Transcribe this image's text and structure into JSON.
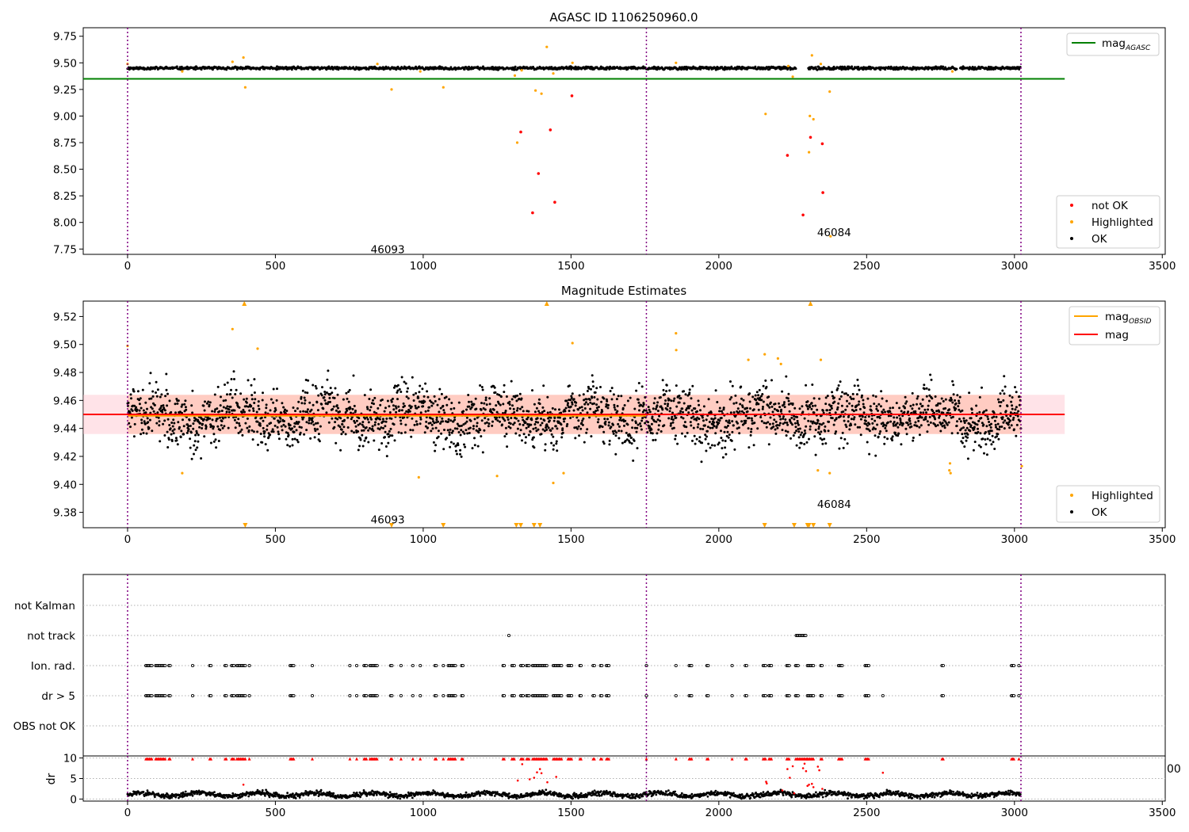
{
  "figure": {
    "title_top": "AGASC ID 1106250960.0",
    "title_mid": "Magnitude Estimates"
  },
  "colors": {
    "ok": "#000000",
    "highlighted": "#ffa500",
    "not_ok": "#ff0000",
    "agasc_line": "#008000",
    "obsid_line": "#ffa500",
    "mag_line": "#ff0000",
    "obs_boundary": "#800080",
    "band_fill": "#ffc0cb"
  },
  "chart_data": [
    {
      "id": "agasc",
      "type": "scatter",
      "title": "AGASC ID 1106250960.0",
      "xlim": [
        -150,
        3510
      ],
      "ylim": [
        7.7,
        9.83
      ],
      "xticks": [
        0,
        500,
        1000,
        1500,
        2000,
        2500,
        3000,
        3500
      ],
      "yticks": [
        7.75,
        8.0,
        8.25,
        8.5,
        8.75,
        9.0,
        9.25,
        9.5,
        9.75
      ],
      "ytick_labels": [
        "7.75",
        "8.00",
        "8.25",
        "8.50",
        "8.75",
        "9.00",
        "9.25",
        "9.50",
        "9.75"
      ],
      "obs_boundaries": [
        0,
        1755,
        3022
      ],
      "obs_labels": [
        {
          "text": "46093",
          "x": 880,
          "y": 7.75
        },
        {
          "text": "46084",
          "x": 2390,
          "y": 7.91
        }
      ],
      "mag_agasc": 9.35,
      "line_range": [
        -150,
        3170
      ],
      "ok_band": {
        "center": 9.45,
        "amp": 0.012
      },
      "gaps": [
        [
          2262,
          2302
        ],
        [
          2805,
          2815
        ]
      ],
      "highlighted": [
        [
          0,
          9.49
        ],
        [
          185,
          9.42
        ],
        [
          355,
          9.51
        ],
        [
          392,
          9.55
        ],
        [
          398,
          9.27
        ],
        [
          845,
          9.49
        ],
        [
          893,
          9.25
        ],
        [
          990,
          9.42
        ],
        [
          1068,
          9.27
        ],
        [
          1310,
          9.38
        ],
        [
          1318,
          8.75
        ],
        [
          1333,
          9.43
        ],
        [
          1380,
          9.24
        ],
        [
          1400,
          9.21
        ],
        [
          1418,
          9.65
        ],
        [
          1440,
          9.4
        ],
        [
          1505,
          9.5
        ],
        [
          1855,
          9.5
        ],
        [
          2158,
          9.02
        ],
        [
          2235,
          9.47
        ],
        [
          2250,
          9.37
        ],
        [
          2305,
          8.66
        ],
        [
          2308,
          9.0
        ],
        [
          2315,
          9.57
        ],
        [
          2320,
          8.97
        ],
        [
          2345,
          9.49
        ],
        [
          2375,
          9.23
        ],
        [
          2378,
          7.87
        ],
        [
          2790,
          9.42
        ]
      ],
      "not_ok": [
        [
          1330,
          8.85
        ],
        [
          1370,
          8.09
        ],
        [
          1390,
          8.46
        ],
        [
          1430,
          8.87
        ],
        [
          1445,
          8.19
        ],
        [
          1503,
          9.19
        ],
        [
          2232,
          8.63
        ],
        [
          2285,
          8.07
        ],
        [
          2310,
          8.8
        ],
        [
          2350,
          8.74
        ],
        [
          2352,
          8.28
        ]
      ],
      "legend_lines": [
        {
          "label": "mag",
          "sub": "AGASC"
        }
      ],
      "legend_points": [
        "not OK",
        "Highlighted",
        "OK"
      ]
    },
    {
      "id": "estimates",
      "type": "scatter",
      "title": "Magnitude Estimates",
      "xlim": [
        -150,
        3510
      ],
      "ylim": [
        9.369,
        9.531
      ],
      "xticks": [
        0,
        500,
        1000,
        1500,
        2000,
        2500,
        3000,
        3500
      ],
      "yticks": [
        9.38,
        9.4,
        9.42,
        9.44,
        9.46,
        9.48,
        9.5,
        9.52
      ],
      "ytick_labels": [
        "9.38",
        "9.40",
        "9.42",
        "9.44",
        "9.46",
        "9.48",
        "9.50",
        "9.52"
      ],
      "obs_boundaries": [
        0,
        1755,
        3022
      ],
      "obs_labels": [
        {
          "text": "46093",
          "x": 880,
          "y": 9.375
        },
        {
          "text": "46084",
          "x": 2390,
          "y": 9.386
        }
      ],
      "mag": 9.45,
      "mag_obsid_1": 9.449,
      "mag_obsid_2": 9.45,
      "band": [
        9.436,
        9.464
      ],
      "line_range": [
        -150,
        3170
      ],
      "ok_band": {
        "center": 9.448,
        "sd": 0.012
      },
      "highlighted": [
        [
          0,
          9.499
        ],
        [
          185,
          9.408
        ],
        [
          355,
          9.511
        ],
        [
          440,
          9.497
        ],
        [
          985,
          9.405
        ],
        [
          1250,
          9.406
        ],
        [
          1440,
          9.401
        ],
        [
          1475,
          9.408
        ],
        [
          1505,
          9.501
        ],
        [
          1855,
          9.508
        ],
        [
          1856,
          9.496
        ],
        [
          2100,
          9.489
        ],
        [
          2155,
          9.493
        ],
        [
          2200,
          9.49
        ],
        [
          2210,
          9.486
        ],
        [
          2335,
          9.41
        ],
        [
          2345,
          9.489
        ],
        [
          2375,
          9.408
        ],
        [
          2780,
          9.41
        ],
        [
          2782,
          9.415
        ],
        [
          2784,
          9.408
        ],
        [
          3025,
          9.413
        ]
      ],
      "clipped_high": [
        395,
        1418,
        2310
      ],
      "clipped_low": [
        398,
        893,
        1068,
        1315,
        1330,
        1375,
        1395,
        2155,
        2255,
        2300,
        2305,
        2320,
        2375
      ],
      "legend_lines": [
        {
          "label": "mag",
          "sub": "OBSID"
        },
        {
          "label": "mag",
          "sub": ""
        }
      ],
      "legend_points": [
        "Highlighted",
        "OK"
      ]
    },
    {
      "id": "flags",
      "type": "scatter",
      "xlim": [
        -150,
        3510
      ],
      "categories": [
        "not Kalman",
        "not track",
        "Ion. rad.",
        "dr > 5",
        "OBS not OK"
      ],
      "obs_boundaries": [
        0,
        1755,
        3022
      ],
      "flag_clusters": {
        "not track": [
          [
            1290,
            1290
          ],
          [
            2262,
            2295
          ]
        ],
        "Ion. rad.": [
          [
            62,
            82
          ],
          [
            95,
            130
          ],
          [
            140,
            145
          ],
          [
            220,
            222
          ],
          [
            278,
            285
          ],
          [
            330,
            335
          ],
          [
            352,
            360
          ],
          [
            370,
            400
          ],
          [
            412,
            415
          ],
          [
            550,
            565
          ],
          [
            625,
            628
          ],
          [
            752,
            755
          ],
          [
            775,
            778
          ],
          [
            800,
            810
          ],
          [
            820,
            845
          ],
          [
            890,
            895
          ],
          [
            925,
            928
          ],
          [
            965,
            968
          ],
          [
            990,
            993
          ],
          [
            1040,
            1045
          ],
          [
            1068,
            1070
          ],
          [
            1085,
            1110
          ],
          [
            1130,
            1135
          ],
          [
            1270,
            1275
          ],
          [
            1300,
            1310
          ],
          [
            1330,
            1340
          ],
          [
            1350,
            1360
          ],
          [
            1370,
            1420
          ],
          [
            1440,
            1470
          ],
          [
            1490,
            1505
          ],
          [
            1530,
            1535
          ],
          [
            1575,
            1580
          ],
          [
            1600,
            1605
          ],
          [
            1620,
            1630
          ],
          [
            1755,
            1757
          ],
          [
            1855,
            1857
          ],
          [
            1900,
            1910
          ],
          [
            1960,
            1965
          ],
          [
            2045,
            2048
          ],
          [
            2090,
            2095
          ],
          [
            2150,
            2160
          ],
          [
            2170,
            2180
          ],
          [
            2230,
            2240
          ],
          [
            2260,
            2270
          ],
          [
            2300,
            2320
          ],
          [
            2345,
            2350
          ],
          [
            2405,
            2420
          ],
          [
            2495,
            2510
          ],
          [
            2755,
            2760
          ],
          [
            2990,
            3000
          ],
          [
            3015,
            3018
          ]
        ],
        "dr > 5": [
          [
            62,
            82
          ],
          [
            95,
            130
          ],
          [
            140,
            145
          ],
          [
            220,
            222
          ],
          [
            278,
            285
          ],
          [
            330,
            335
          ],
          [
            352,
            360
          ],
          [
            370,
            400
          ],
          [
            412,
            415
          ],
          [
            550,
            565
          ],
          [
            625,
            628
          ],
          [
            752,
            755
          ],
          [
            775,
            778
          ],
          [
            800,
            810
          ],
          [
            820,
            845
          ],
          [
            890,
            895
          ],
          [
            925,
            928
          ],
          [
            965,
            968
          ],
          [
            990,
            993
          ],
          [
            1040,
            1045
          ],
          [
            1068,
            1070
          ],
          [
            1085,
            1110
          ],
          [
            1130,
            1135
          ],
          [
            1270,
            1275
          ],
          [
            1300,
            1310
          ],
          [
            1330,
            1340
          ],
          [
            1350,
            1360
          ],
          [
            1370,
            1420
          ],
          [
            1440,
            1470
          ],
          [
            1490,
            1505
          ],
          [
            1530,
            1535
          ],
          [
            1575,
            1580
          ],
          [
            1600,
            1605
          ],
          [
            1620,
            1630
          ],
          [
            1755,
            1757
          ],
          [
            1855,
            1857
          ],
          [
            1900,
            1910
          ],
          [
            1960,
            1965
          ],
          [
            2045,
            2048
          ],
          [
            2090,
            2095
          ],
          [
            2150,
            2160
          ],
          [
            2170,
            2180
          ],
          [
            2230,
            2240
          ],
          [
            2260,
            2270
          ],
          [
            2300,
            2320
          ],
          [
            2345,
            2350
          ],
          [
            2405,
            2420
          ],
          [
            2495,
            2510
          ],
          [
            2555,
            2558
          ],
          [
            2755,
            2760
          ],
          [
            2990,
            3000
          ],
          [
            3015,
            3018
          ]
        ]
      }
    },
    {
      "id": "dr",
      "type": "scatter",
      "ylabel": "dr",
      "xlim": [
        -150,
        3510
      ],
      "ylim": [
        -0.5,
        10.5
      ],
      "xticks": [
        0,
        500,
        1000,
        1500,
        2000,
        2500,
        3000,
        3500
      ],
      "yticks": [
        0,
        5,
        10
      ],
      "ytick_labels": [
        "0",
        "5",
        "10"
      ],
      "stray_tick_label": "00",
      "obs_boundaries": [
        0,
        1755,
        3022
      ],
      "ok_band": {
        "center": 1.1,
        "sd": 0.5
      },
      "red_clipped": [
        [
          62,
          82
        ],
        [
          95,
          130
        ],
        [
          140,
          145
        ],
        [
          220,
          222
        ],
        [
          278,
          285
        ],
        [
          330,
          335
        ],
        [
          352,
          360
        ],
        [
          370,
          400
        ],
        [
          412,
          415
        ],
        [
          550,
          565
        ],
        [
          625,
          628
        ],
        [
          752,
          755
        ],
        [
          775,
          778
        ],
        [
          800,
          810
        ],
        [
          820,
          845
        ],
        [
          890,
          895
        ],
        [
          925,
          928
        ],
        [
          965,
          968
        ],
        [
          990,
          993
        ],
        [
          1040,
          1045
        ],
        [
          1068,
          1070
        ],
        [
          1085,
          1110
        ],
        [
          1130,
          1135
        ],
        [
          1270,
          1275
        ],
        [
          1300,
          1310
        ],
        [
          1330,
          1340
        ],
        [
          1350,
          1360
        ],
        [
          1370,
          1420
        ],
        [
          1440,
          1470
        ],
        [
          1490,
          1505
        ],
        [
          1530,
          1535
        ],
        [
          1575,
          1580
        ],
        [
          1600,
          1605
        ],
        [
          1620,
          1630
        ],
        [
          1755,
          1757
        ],
        [
          1855,
          1857
        ],
        [
          1900,
          1910
        ],
        [
          1960,
          1965
        ],
        [
          2045,
          2048
        ],
        [
          2090,
          2095
        ],
        [
          2150,
          2160
        ],
        [
          2170,
          2180
        ],
        [
          2230,
          2240
        ],
        [
          2260,
          2300
        ],
        [
          2300,
          2320
        ],
        [
          2345,
          2350
        ],
        [
          2405,
          2420
        ],
        [
          2495,
          2510
        ],
        [
          2755,
          2760
        ],
        [
          2990,
          3000
        ],
        [
          3015,
          3018
        ]
      ],
      "red_points": [
        [
          392,
          3.5
        ],
        [
          1320,
          4.5
        ],
        [
          1335,
          8.5
        ],
        [
          1360,
          4.8
        ],
        [
          1375,
          5.2
        ],
        [
          1385,
          6.5
        ],
        [
          1395,
          7.3
        ],
        [
          1400,
          6.3
        ],
        [
          1420,
          4.1
        ],
        [
          1450,
          5.4
        ],
        [
          2160,
          4.2
        ],
        [
          2162,
          3.8
        ],
        [
          2215,
          2.1
        ],
        [
          2232,
          7.3
        ],
        [
          2240,
          5.2
        ],
        [
          2250,
          8.0
        ],
        [
          2255,
          1.4
        ],
        [
          2285,
          7.5
        ],
        [
          2290,
          8.6
        ],
        [
          2295,
          6.8
        ],
        [
          2300,
          3.2
        ],
        [
          2305,
          3.5
        ],
        [
          2315,
          3.7
        ],
        [
          2320,
          2.9
        ],
        [
          2335,
          7.9
        ],
        [
          2340,
          7.0
        ],
        [
          2350,
          2.5
        ],
        [
          2555,
          6.4
        ]
      ]
    }
  ]
}
